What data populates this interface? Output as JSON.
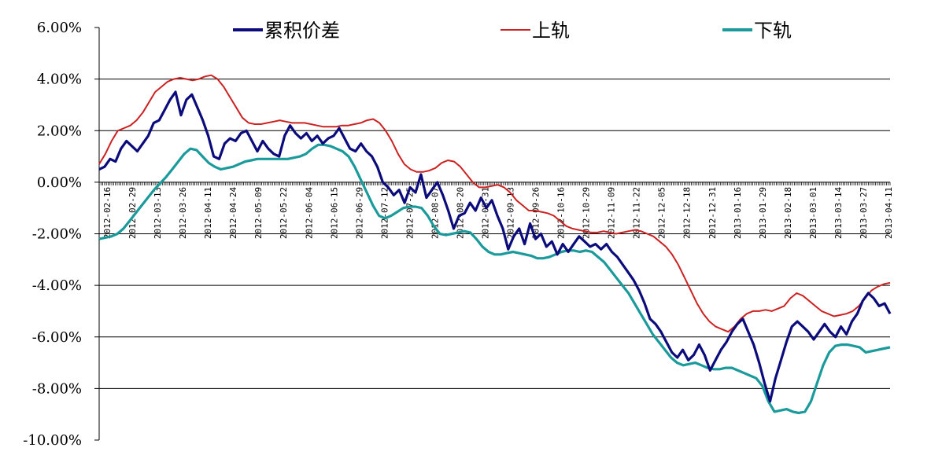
{
  "chart_data": {
    "type": "line",
    "title": "",
    "xlabel": "",
    "ylabel": "",
    "ylim": [
      -10,
      6
    ],
    "y_tick_labels": [
      "6.00%",
      "4.00%",
      "2.00%",
      "0.00%",
      "-2.00%",
      "-4.00%",
      "-6.00%",
      "-8.00%",
      "-10.00%"
    ],
    "y_ticks": [
      6,
      4,
      2,
      0,
      -2,
      -4,
      -6,
      -8,
      -10
    ],
    "grid": true,
    "legend_position": "top",
    "x_tick_labels": [
      "2012-02-16",
      "2012-02-29",
      "2012-03-13",
      "2012-03-26",
      "2012-04-11",
      "2012-04-24",
      "2012-05-09",
      "2012-05-22",
      "2012-06-04",
      "2012-06-15",
      "2012-06-29",
      "2012-07-12",
      "2012-07-25",
      "2012-08-07",
      "2012-08-20",
      "2012-08-31",
      "2012-09-13",
      "2012-09-26",
      "2012-10-16",
      "2012-10-29",
      "2012-11-09",
      "2012-11-22",
      "2012-12-05",
      "2012-12-18",
      "2012-12-31",
      "2013-01-16",
      "2013-01-29",
      "2013-02-18",
      "2013-03-01",
      "2013-03-14",
      "2013-03-27",
      "2013-04-11"
    ],
    "series": [
      {
        "name": "累积价差",
        "color": "#0b0b7c",
        "values": [
          0.5,
          0.6,
          0.9,
          0.8,
          1.3,
          1.6,
          1.4,
          1.2,
          1.5,
          1.8,
          2.3,
          2.4,
          2.8,
          3.2,
          3.5,
          2.6,
          3.2,
          3.4,
          2.9,
          2.4,
          1.8,
          1.0,
          0.9,
          1.5,
          1.7,
          1.6,
          1.9,
          2.0,
          1.6,
          1.2,
          1.6,
          1.3,
          1.1,
          1.0,
          1.8,
          2.2,
          1.9,
          1.7,
          1.9,
          1.6,
          1.8,
          1.5,
          1.7,
          1.8,
          2.1,
          1.7,
          1.3,
          1.2,
          1.5,
          1.2,
          1.0,
          0.6,
          0.0,
          -0.2,
          -0.5,
          -0.3,
          -0.8,
          -0.2,
          -0.4,
          0.3,
          -0.6,
          -0.3,
          0.0,
          -0.5,
          -1.1,
          -1.8,
          -1.3,
          -1.2,
          -0.8,
          -1.1,
          -0.6,
          -1.0,
          -0.7,
          -1.3,
          -1.8,
          -2.6,
          -2.1,
          -1.8,
          -2.4,
          -1.6,
          -2.2,
          -2.0,
          -2.5,
          -2.3,
          -2.8,
          -2.4,
          -2.7,
          -2.4,
          -2.1,
          -2.3,
          -2.5,
          -2.4,
          -2.6,
          -2.4,
          -2.7,
          -2.9,
          -3.2,
          -3.5,
          -3.8,
          -4.2,
          -4.7,
          -5.3,
          -5.5,
          -5.8,
          -6.2,
          -6.6,
          -6.8,
          -6.5,
          -6.9,
          -6.7,
          -6.3,
          -6.7,
          -7.3,
          -6.9,
          -6.5,
          -6.2,
          -5.8,
          -5.5,
          -5.3,
          -5.8,
          -6.3,
          -7.0,
          -7.8,
          -8.5,
          -7.6,
          -6.9,
          -6.2,
          -5.6,
          -5.4,
          -5.6,
          -5.8,
          -6.1,
          -5.8,
          -5.5,
          -5.8,
          -6.0,
          -5.6,
          -5.9,
          -5.4,
          -5.1,
          -4.6,
          -4.3,
          -4.5,
          -4.8,
          -4.7,
          -5.1
        ]
      },
      {
        "name": "上轨",
        "color": "#cc2222",
        "values": [
          0.7,
          1.1,
          1.6,
          2.0,
          2.1,
          2.2,
          2.4,
          2.7,
          3.1,
          3.5,
          3.7,
          3.9,
          4.0,
          4.05,
          4.0,
          3.95,
          4.0,
          4.1,
          4.15,
          4.0,
          3.7,
          3.3,
          2.9,
          2.5,
          2.3,
          2.25,
          2.25,
          2.3,
          2.35,
          2.4,
          2.35,
          2.3,
          2.3,
          2.3,
          2.25,
          2.2,
          2.15,
          2.15,
          2.15,
          2.2,
          2.2,
          2.25,
          2.3,
          2.4,
          2.45,
          2.3,
          2.0,
          1.6,
          1.1,
          0.7,
          0.5,
          0.4,
          0.4,
          0.45,
          0.55,
          0.75,
          0.85,
          0.8,
          0.6,
          0.3,
          0.0,
          -0.2,
          -0.2,
          -0.15,
          -0.1,
          -0.2,
          -0.4,
          -0.7,
          -0.9,
          -1.1,
          -1.1,
          -1.15,
          -1.2,
          -1.3,
          -1.5,
          -1.7,
          -1.8,
          -1.85,
          -1.9,
          -1.95,
          -1.95,
          -1.9,
          -1.95,
          -2.0,
          -1.95,
          -1.9,
          -1.85,
          -1.9,
          -2.0,
          -2.1,
          -2.3,
          -2.5,
          -2.8,
          -3.2,
          -3.7,
          -4.2,
          -4.7,
          -5.1,
          -5.4,
          -5.6,
          -5.7,
          -5.8,
          -5.6,
          -5.3,
          -5.1,
          -5.0,
          -5.0,
          -4.95,
          -5.0,
          -4.9,
          -4.8,
          -4.5,
          -4.3,
          -4.4,
          -4.6,
          -4.8,
          -5.0,
          -5.1,
          -5.2,
          -5.15,
          -5.1,
          -5.0,
          -4.8,
          -4.5,
          -4.2,
          -4.05,
          -3.95,
          -3.9
        ]
      },
      {
        "name": "下轨",
        "color": "#1a9a9a",
        "values": [
          -2.2,
          -2.15,
          -2.1,
          -2.0,
          -1.8,
          -1.5,
          -1.2,
          -0.9,
          -0.6,
          -0.3,
          -0.05,
          0.2,
          0.5,
          0.8,
          1.1,
          1.3,
          1.25,
          1.0,
          0.75,
          0.6,
          0.5,
          0.55,
          0.6,
          0.7,
          0.8,
          0.85,
          0.9,
          0.9,
          0.9,
          0.9,
          0.9,
          0.9,
          0.95,
          1.0,
          1.1,
          1.3,
          1.45,
          1.45,
          1.4,
          1.3,
          1.2,
          1.0,
          0.6,
          0.1,
          -0.4,
          -0.9,
          -1.3,
          -1.4,
          -1.3,
          -1.15,
          -1.0,
          -0.95,
          -0.95,
          -1.0,
          -1.3,
          -1.7,
          -2.0,
          -2.05,
          -2.0,
          -1.95,
          -1.9,
          -1.95,
          -2.2,
          -2.5,
          -2.7,
          -2.8,
          -2.8,
          -2.75,
          -2.7,
          -2.75,
          -2.8,
          -2.85,
          -2.95,
          -2.95,
          -2.9,
          -2.8,
          -2.7,
          -2.65,
          -2.65,
          -2.7,
          -2.65,
          -2.7,
          -2.9,
          -3.1,
          -3.4,
          -3.7,
          -4.0,
          -4.3,
          -4.7,
          -5.1,
          -5.5,
          -5.9,
          -6.2,
          -6.5,
          -6.8,
          -7.0,
          -7.1,
          -7.05,
          -7.0,
          -7.1,
          -7.2,
          -7.25,
          -7.25,
          -7.2,
          -7.2,
          -7.3,
          -7.4,
          -7.5,
          -7.6,
          -7.9,
          -8.5,
          -8.9,
          -8.85,
          -8.8,
          -8.9,
          -8.95,
          -8.9,
          -8.5,
          -7.8,
          -7.1,
          -6.6,
          -6.35,
          -6.3,
          -6.3,
          -6.35,
          -6.4,
          -6.6,
          -6.55,
          -6.5,
          -6.45,
          -6.4
        ]
      }
    ]
  }
}
